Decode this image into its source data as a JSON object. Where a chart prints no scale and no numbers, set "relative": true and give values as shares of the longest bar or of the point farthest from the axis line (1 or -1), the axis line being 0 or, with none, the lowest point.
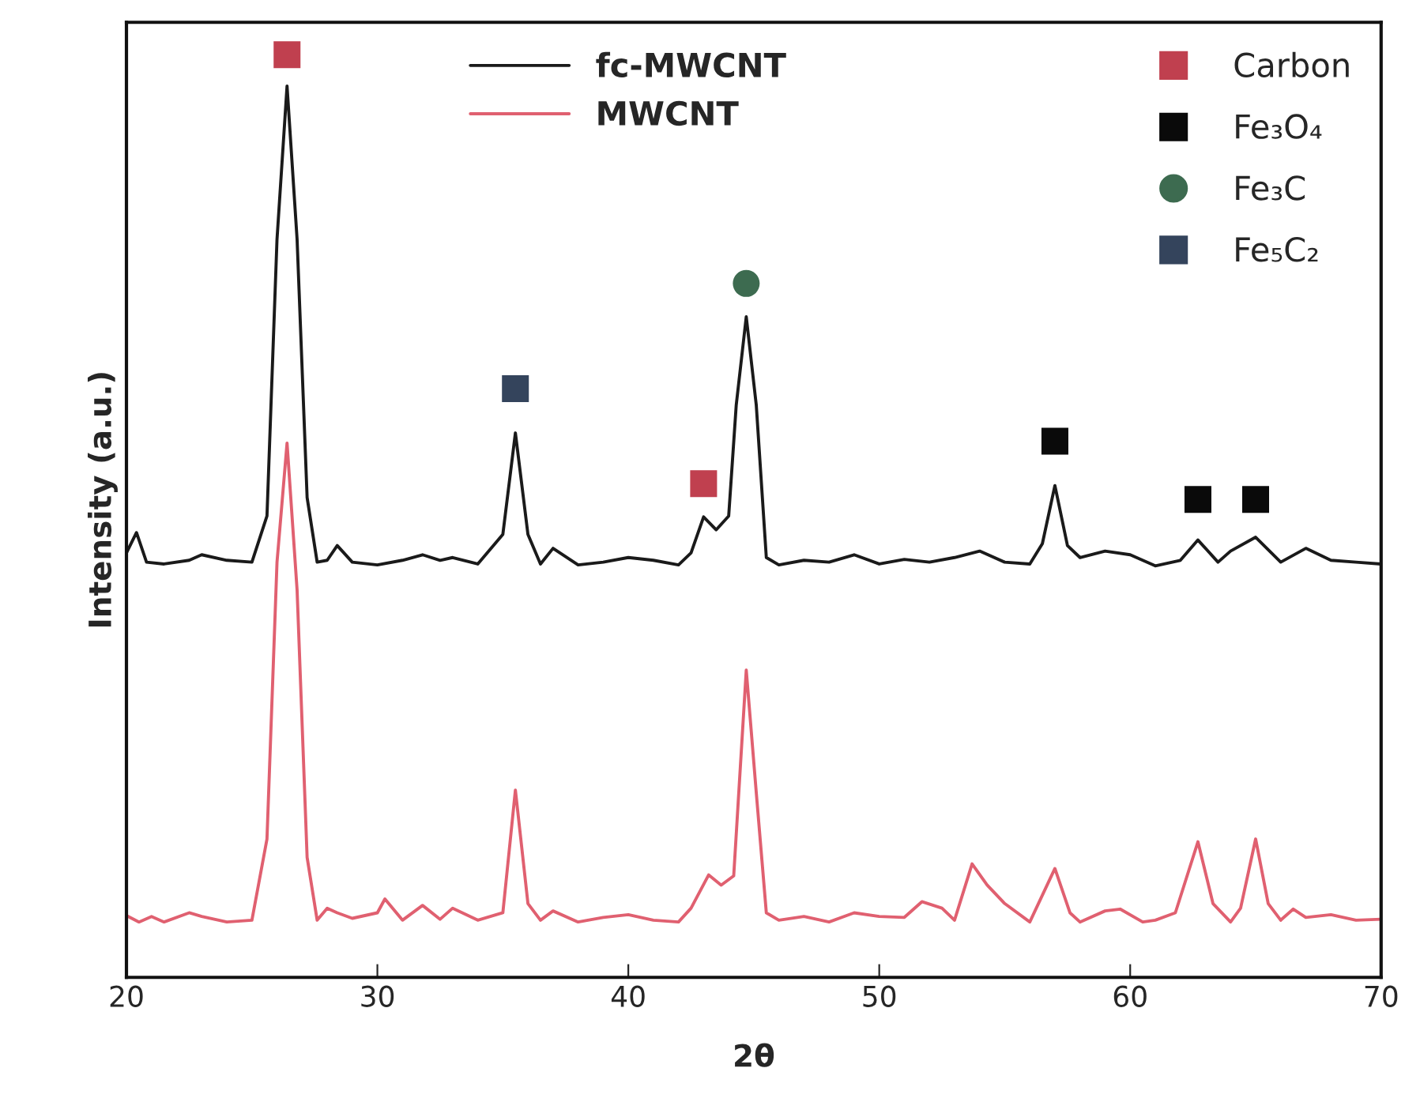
{
  "chart_data": {
    "type": "line",
    "xlabel": "2θ",
    "ylabel": "Intensity (a.u.)",
    "relative": true,
    "xlim": [
      20,
      70
    ],
    "xticks": [
      20,
      30,
      40,
      50,
      60,
      70
    ],
    "tick_labels": "x",
    "grid": false,
    "legend": "top",
    "marker": "none",
    "line_style": "solid",
    "series": [
      {
        "name": "fc-MWCNT",
        "color": "#1a1a1a",
        "x": [
          20,
          20.4,
          20.8,
          21.5,
          22.5,
          23,
          24,
          25,
          25.6,
          26,
          26.4,
          26.8,
          27.2,
          27.6,
          28,
          28.4,
          29,
          30,
          31,
          31.8,
          32.5,
          33,
          34,
          35,
          35.5,
          36,
          36.5,
          37,
          38,
          39,
          40,
          41,
          42,
          42.5,
          43,
          43.5,
          44,
          44.3,
          44.7,
          45.1,
          45.5,
          46,
          47,
          48,
          49,
          50,
          51,
          52,
          53,
          54,
          55,
          56,
          56.5,
          57,
          57.5,
          58,
          59,
          60,
          61,
          62,
          62.7,
          63.5,
          64,
          65,
          66,
          67,
          68,
          69,
          70
        ],
        "values": [
          0.46,
          0.482,
          0.45,
          0.448,
          0.452,
          0.458,
          0.452,
          0.45,
          0.5,
          0.8,
          0.966,
          0.8,
          0.52,
          0.45,
          0.452,
          0.468,
          0.45,
          0.447,
          0.452,
          0.458,
          0.452,
          0.455,
          0.448,
          0.48,
          0.59,
          0.48,
          0.448,
          0.465,
          0.447,
          0.45,
          0.455,
          0.452,
          0.447,
          0.46,
          0.499,
          0.485,
          0.5,
          0.62,
          0.716,
          0.62,
          0.455,
          0.447,
          0.452,
          0.45,
          0.458,
          0.448,
          0.453,
          0.45,
          0.455,
          0.462,
          0.45,
          0.448,
          0.47,
          0.533,
          0.468,
          0.455,
          0.462,
          0.458,
          0.446,
          0.452,
          0.474,
          0.45,
          0.462,
          0.477,
          0.45,
          0.465,
          0.452,
          0.45,
          0.448
        ]
      },
      {
        "name": "MWCNT",
        "color": "#e06070",
        "x": [
          20,
          20.5,
          21,
          21.5,
          22.5,
          23,
          24,
          25,
          25.6,
          26,
          26.4,
          26.8,
          27.2,
          27.6,
          28,
          28.4,
          29,
          30,
          30.3,
          31,
          31.8,
          32.5,
          33,
          34,
          35,
          35.5,
          36,
          36.5,
          37,
          38,
          39,
          40,
          41,
          42,
          42.5,
          43.2,
          43.7,
          44.2,
          44.7,
          45.1,
          45.5,
          46,
          47,
          48,
          49,
          50,
          51,
          51.7,
          52.5,
          53,
          53.7,
          54.3,
          55,
          56,
          57,
          57.6,
          58,
          59,
          59.6,
          60.5,
          61,
          61.8,
          62.7,
          63.3,
          64,
          64.4,
          65,
          65.5,
          66,
          66.5,
          67,
          68,
          69,
          70
        ],
        "values": [
          0.067,
          0.06,
          0.066,
          0.06,
          0.07,
          0.066,
          0.06,
          0.062,
          0.15,
          0.45,
          0.579,
          0.42,
          0.13,
          0.062,
          0.075,
          0.07,
          0.064,
          0.07,
          0.085,
          0.062,
          0.078,
          0.063,
          0.075,
          0.062,
          0.07,
          0.203,
          0.08,
          0.062,
          0.072,
          0.06,
          0.065,
          0.068,
          0.062,
          0.06,
          0.075,
          0.111,
          0.1,
          0.11,
          0.333,
          0.2,
          0.07,
          0.062,
          0.066,
          0.06,
          0.07,
          0.066,
          0.065,
          0.082,
          0.075,
          0.062,
          0.123,
          0.1,
          0.08,
          0.06,
          0.118,
          0.07,
          0.06,
          0.072,
          0.074,
          0.06,
          0.062,
          0.07,
          0.147,
          0.08,
          0.06,
          0.075,
          0.15,
          0.08,
          0.062,
          0.074,
          0.065,
          0.068,
          0.062,
          0.063
        ]
      },
      {
        "name": "Carbon",
        "type": "scatter",
        "marker": "square",
        "color": "#c0404f",
        "x": [
          26.4,
          43
        ],
        "values": [
          1.0,
          0.535
        ]
      },
      {
        "name": "Fe₃O₄",
        "type": "scatter",
        "marker": "square",
        "color": "#0a0a0a",
        "x": [
          57,
          62.7,
          65
        ],
        "values": [
          0.581,
          0.518,
          0.518
        ]
      },
      {
        "name": "Fe₃C",
        "type": "scatter",
        "marker": "circle",
        "color": "#3d6b50",
        "x": [
          44.7
        ],
        "values": [
          0.752
        ]
      },
      {
        "name": "Fe₅C₂",
        "type": "scatter",
        "marker": "square",
        "color": "#34445c",
        "x": [
          35.5
        ],
        "values": [
          0.638
        ]
      }
    ]
  }
}
